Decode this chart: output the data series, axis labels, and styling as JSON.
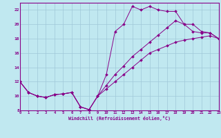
{
  "xlabel": "Windchill (Refroidissement éolien,°C)",
  "bg_color": "#c0e8f0",
  "line_color": "#880088",
  "grid_color": "#a0c8d8",
  "xmin": 0,
  "xmax": 23,
  "ymin": 8,
  "ymax": 23,
  "yticks": [
    8,
    10,
    12,
    14,
    16,
    18,
    20,
    22
  ],
  "xticks": [
    0,
    1,
    2,
    3,
    4,
    5,
    6,
    7,
    8,
    9,
    10,
    11,
    12,
    13,
    14,
    15,
    16,
    17,
    18,
    19,
    20,
    21,
    22,
    23
  ],
  "curve1_x": [
    0,
    1,
    2,
    3,
    4,
    5,
    6,
    7,
    8,
    9,
    10,
    11,
    12,
    13,
    14,
    15,
    16,
    17,
    18,
    19,
    20,
    21,
    22,
    23
  ],
  "curve1_y": [
    12,
    10.5,
    10,
    9.8,
    10.2,
    10.3,
    10.5,
    8.5,
    8.1,
    10,
    13,
    19,
    20,
    22.5,
    22,
    22.5,
    22,
    21.8,
    21.8,
    20,
    19,
    18.8,
    18.8,
    18
  ],
  "curve2_x": [
    0,
    1,
    2,
    3,
    4,
    5,
    6,
    7,
    8,
    9,
    10,
    11,
    12,
    13,
    14,
    15,
    16,
    17,
    18,
    19,
    20,
    21,
    22,
    23
  ],
  "curve2_y": [
    12,
    10.5,
    10,
    9.8,
    10.2,
    10.3,
    10.5,
    8.5,
    8.1,
    10,
    11.5,
    13,
    14.2,
    15.5,
    16.5,
    17.5,
    18.5,
    19.5,
    20.5,
    20,
    20,
    19,
    18.8,
    18
  ],
  "curve3_x": [
    0,
    1,
    2,
    3,
    4,
    5,
    6,
    7,
    8,
    9,
    10,
    11,
    12,
    13,
    14,
    15,
    16,
    17,
    18,
    19,
    20,
    21,
    22,
    23
  ],
  "curve3_y": [
    12,
    10.5,
    10,
    9.8,
    10.2,
    10.3,
    10.5,
    8.5,
    8.1,
    10,
    11,
    12,
    13,
    14,
    15,
    16,
    16.5,
    17,
    17.5,
    17.8,
    18,
    18.2,
    18.4,
    18
  ]
}
